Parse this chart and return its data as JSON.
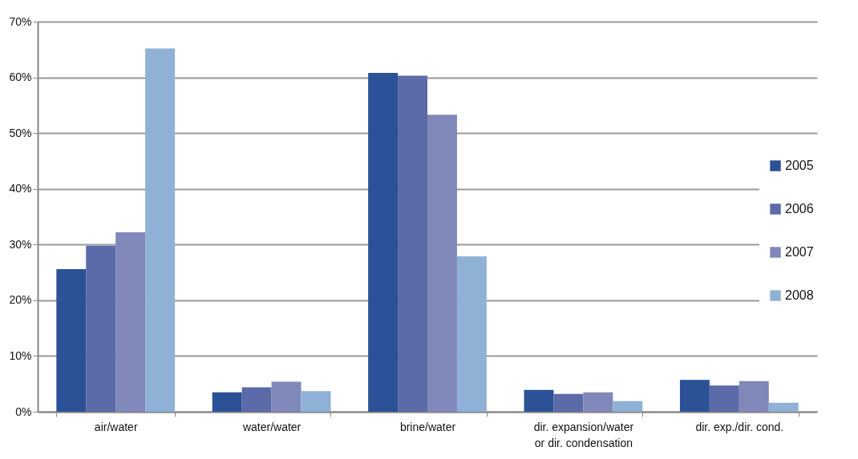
{
  "chart_data": {
    "type": "bar",
    "categories": [
      "air/water",
      "water/water",
      "brine/water",
      "dir. expansion/water or dir. condensation",
      "dir. exp./dir. cond."
    ],
    "series": [
      {
        "name": "2005",
        "color": "#2b5196",
        "values": [
          25.6,
          3.5,
          60.8,
          3.9,
          5.7
        ]
      },
      {
        "name": "2006",
        "color": "#5b6aa8",
        "values": [
          29.8,
          4.4,
          60.3,
          3.2,
          4.7
        ]
      },
      {
        "name": "2007",
        "color": "#7f88b8",
        "values": [
          32.2,
          5.4,
          53.3,
          3.5,
          5.5
        ]
      },
      {
        "name": "2008",
        "color": "#8fb1d6",
        "values": [
          65.2,
          3.7,
          27.9,
          1.9,
          1.6
        ]
      }
    ],
    "ylim": [
      0,
      70
    ],
    "yticks": [
      {
        "value": 0,
        "label": "0%"
      },
      {
        "value": 10,
        "label": "10%"
      },
      {
        "value": 20,
        "label": "20%"
      },
      {
        "value": 30,
        "label": "30%"
      },
      {
        "value": 40,
        "label": "40%"
      },
      {
        "value": 50,
        "label": "50%"
      },
      {
        "value": 60,
        "label": "60%"
      },
      {
        "value": 70,
        "label": "70%"
      }
    ],
    "grid": "y",
    "legend": "right"
  }
}
